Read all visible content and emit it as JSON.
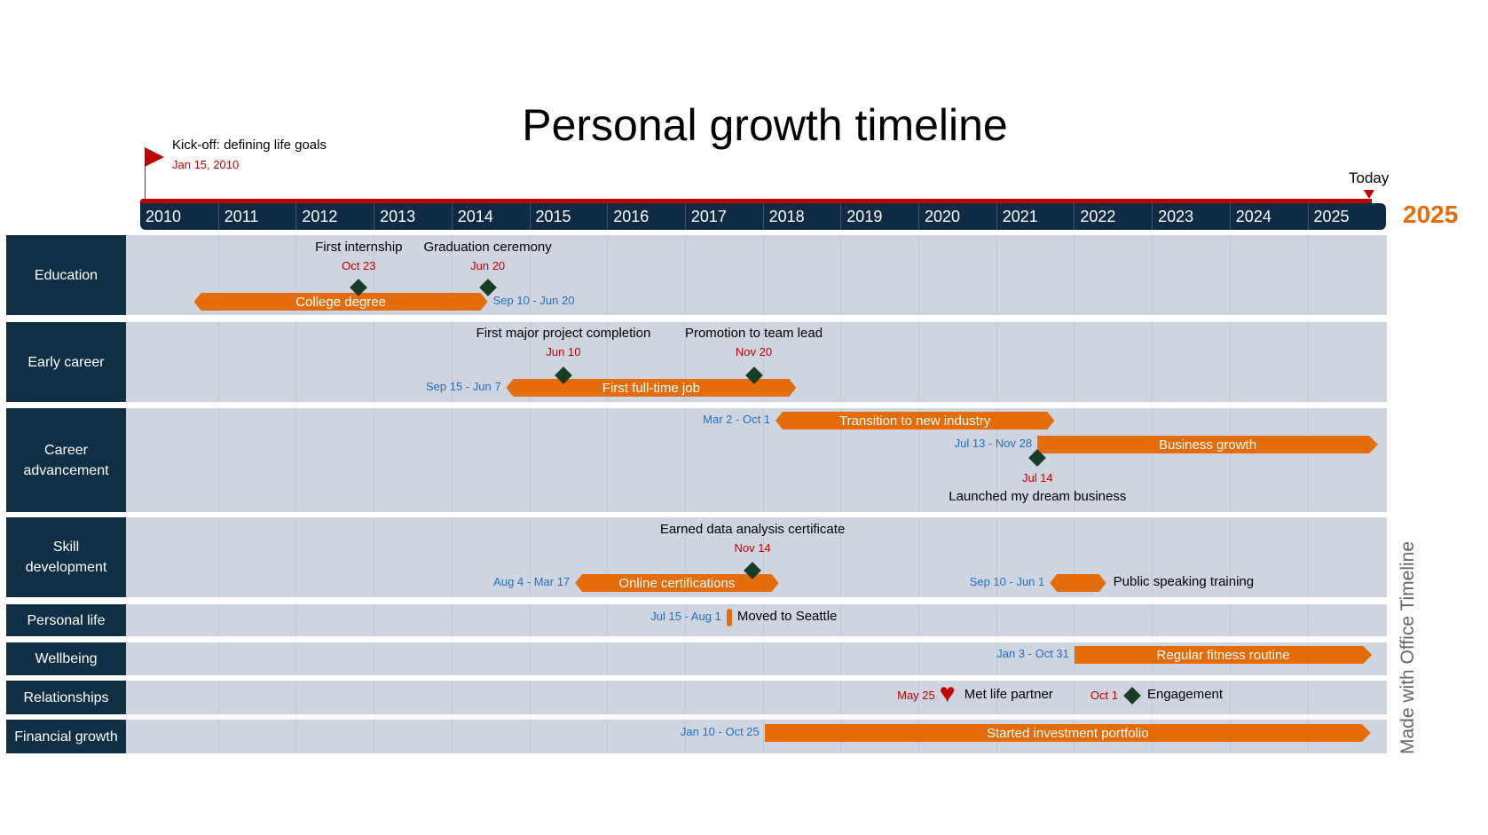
{
  "title": "Personal growth timeline",
  "kickoff": {
    "label": "Kick-off: defining life goals",
    "date": "Jan 15, 2010",
    "iso": "2010-01-15"
  },
  "today": {
    "label": "Today",
    "end_year": "2025"
  },
  "years": [
    "2010",
    "2011",
    "2012",
    "2013",
    "2014",
    "2015",
    "2016",
    "2017",
    "2018",
    "2019",
    "2020",
    "2021",
    "2022",
    "2023",
    "2024",
    "2025"
  ],
  "colors": {
    "task": "#e46c0a",
    "milestone": "#173d25",
    "date_task": "#1f6fbf",
    "date_milestone": "#c00000",
    "row_label_bg": "#0f2f45",
    "row_bg": "#ced4e0",
    "axis": "#0f2a45",
    "accent_red": "#c00000"
  },
  "rows": [
    {
      "label": "Education",
      "items": [
        {
          "type": "task",
          "label": "College degree",
          "start": "2010-09-10",
          "end": "2014-06-20",
          "dates": "Sep 10 - Jun 20"
        },
        {
          "type": "milestone",
          "icon": "diamond-icon",
          "label": "First internship",
          "date": "2012-10-23",
          "dates": "Oct 23"
        },
        {
          "type": "milestone",
          "icon": "diamond-icon",
          "label": "Graduation ceremony",
          "date": "2014-06-20",
          "dates": "Jun 20"
        }
      ]
    },
    {
      "label": "Early career",
      "items": [
        {
          "type": "task",
          "label": "First full-time job",
          "start": "2014-09-15",
          "end": "2018-06-07",
          "dates": "Sep 15 - Jun 7"
        },
        {
          "type": "milestone",
          "icon": "diamond-icon",
          "label": "First major project completion",
          "date": "2015-06-10",
          "dates": "Jun 10"
        },
        {
          "type": "milestone",
          "icon": "diamond-icon",
          "label": "Promotion to team lead",
          "date": "2017-11-20",
          "dates": "Nov 20"
        }
      ]
    },
    {
      "label": "Career advancement",
      "items": [
        {
          "type": "task",
          "label": "Transition to new industry",
          "start": "2018-03-02",
          "end": "2021-10-01",
          "dates": "Mar 2 - Oct 1"
        },
        {
          "type": "task",
          "label": "Business growth",
          "start": "2021-07-13",
          "end": "2025-11-28",
          "dates": "Jul 13 - Nov 28"
        },
        {
          "type": "milestone",
          "icon": "diamond-icon",
          "label": "Launched my dream business",
          "date": "2021-07-14",
          "dates": "Jul 14"
        }
      ]
    },
    {
      "label": "Skill development",
      "items": [
        {
          "type": "task",
          "label": "Online certifications",
          "start": "2015-08-04",
          "end": "2018-03-17",
          "dates": "Aug 4 - Mar 17"
        },
        {
          "type": "task",
          "label": "Public speaking training",
          "start": "2021-09-10",
          "end": "2022-06-01",
          "dates": "Sep 10 - Jun 1"
        },
        {
          "type": "milestone",
          "icon": "diamond-icon",
          "label": "Earned data analysis certificate",
          "date": "2017-11-14",
          "dates": "Nov 14"
        }
      ]
    },
    {
      "label": "Personal life",
      "items": [
        {
          "type": "task",
          "label": "Moved to Seattle",
          "start": "2017-07-15",
          "end": "2017-08-01",
          "dates": "Jul 15 - Aug 1"
        }
      ]
    },
    {
      "label": "Wellbeing",
      "items": [
        {
          "type": "task",
          "label": "Regular fitness routine",
          "start": "2022-01-03",
          "end": "2025-10-31",
          "dates": "Jan 3 - Oct 31"
        }
      ]
    },
    {
      "label": "Relationships",
      "items": [
        {
          "type": "milestone",
          "icon": "heart-icon",
          "label": "Met life partner",
          "date": "2020-05-25",
          "dates": "May 25"
        },
        {
          "type": "milestone",
          "icon": "diamond-icon",
          "label": "Engagement",
          "date": "2022-10-01",
          "dates": "Oct 1"
        }
      ]
    },
    {
      "label": "Financial growth",
      "items": [
        {
          "type": "task",
          "label": "Started investment portfolio",
          "start": "2018-01-10",
          "end": "2025-10-25",
          "dates": "Jan 10 - Oct 25"
        }
      ]
    }
  ],
  "brand": {
    "text": "Made with  Office Timeline"
  }
}
